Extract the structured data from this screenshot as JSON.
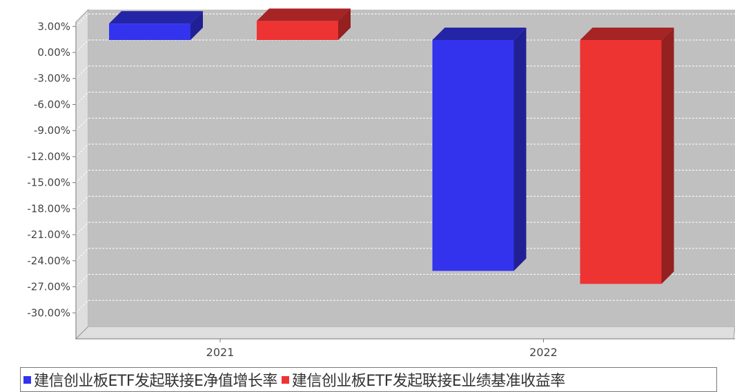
{
  "colors": {
    "series1": "#3333ee",
    "series2": "#ee3333",
    "plot_bg": "#c0c0c0",
    "wall": "#dedede"
  },
  "chart_data": {
    "type": "bar",
    "categories": [
      "2021",
      "2022"
    ],
    "series": [
      {
        "name": "建信创业板ETF发起联接E净值增长率",
        "values": [
          1.9,
          -26.6
        ]
      },
      {
        "name": "建信创业板ETF发起联接E业绩基准收益率",
        "values": [
          2.2,
          -28.1
        ]
      }
    ],
    "ylim": [
      -33,
      3.5
    ],
    "yticks": [
      3,
      0,
      -3,
      -6,
      -9,
      -12,
      -15,
      -18,
      -21,
      -24,
      -27,
      -30
    ],
    "ytick_labels": [
      "3.00%",
      "0.00%",
      "-3.00%",
      "-6.00%",
      "-9.00%",
      "-12.00%",
      "-15.00%",
      "-18.00%",
      "-21.00%",
      "-24.00%",
      "-27.00%",
      "-30.00%"
    ],
    "grid": true,
    "legend_position": "bottom"
  }
}
